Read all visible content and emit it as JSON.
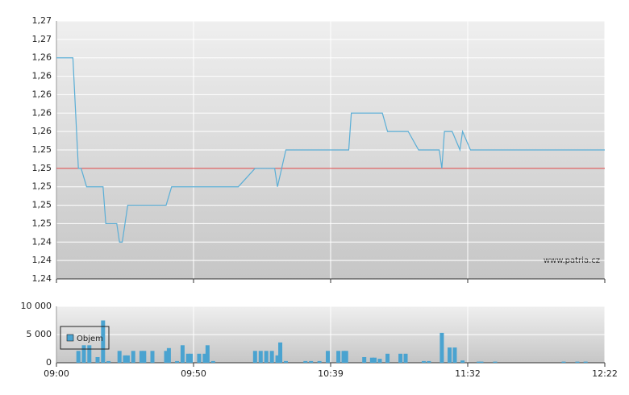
{
  "chart_data": [
    {
      "type": "line",
      "color": "#5aaed6",
      "x": [
        0,
        6,
        8,
        9,
        11,
        17,
        18,
        22,
        23,
        24,
        25,
        26,
        40,
        42,
        66,
        72,
        79,
        80,
        83,
        106,
        107,
        119,
        121,
        129,
        133,
        141,
        142,
        143,
        146,
        149,
        150,
        153,
        202
      ],
      "values": [
        1.2635,
        1.2635,
        1.2515,
        1.2515,
        1.2495,
        1.2495,
        1.2455,
        1.2455,
        1.2435,
        1.2435,
        1.2455,
        1.2475,
        1.2475,
        1.2495,
        1.2495,
        1.2515,
        1.2515,
        1.2495,
        1.2535,
        1.2535,
        1.2575,
        1.2575,
        1.2555,
        1.2555,
        1.2535,
        1.2535,
        1.2515,
        1.2555,
        1.2555,
        1.2535,
        1.2555,
        1.2535,
        1.2535
      ],
      "ylim": [
        1.2395,
        1.2675
      ],
      "yticks": [
        {
          "value": 1.2675,
          "label": "1,27"
        },
        {
          "value": 1.2655,
          "label": "1,27"
        },
        {
          "value": 1.2635,
          "label": "1,26"
        },
        {
          "value": 1.2615,
          "label": "1,26"
        },
        {
          "value": 1.2595,
          "label": "1,26"
        },
        {
          "value": 1.2575,
          "label": "1,26"
        },
        {
          "value": 1.2555,
          "label": "1,26"
        },
        {
          "value": 1.2535,
          "label": "1,25"
        },
        {
          "value": 1.2515,
          "label": "1,25"
        },
        {
          "value": 1.2495,
          "label": "1,25"
        },
        {
          "value": 1.2475,
          "label": "1,25"
        },
        {
          "value": 1.2455,
          "label": "1,25"
        },
        {
          "value": 1.2435,
          "label": "1,24"
        },
        {
          "value": 1.2415,
          "label": "1,24"
        },
        {
          "value": 1.2395,
          "label": "1,24"
        }
      ],
      "reference_line": {
        "value": 1.2515,
        "color": "#d84040"
      },
      "grid": true,
      "watermark": "www.patria.cz"
    },
    {
      "type": "bar",
      "x": [
        8,
        10,
        12,
        15,
        17,
        19,
        23,
        25,
        26,
        28,
        31,
        32,
        35,
        40,
        41,
        44,
        46,
        48,
        49,
        52,
        54,
        55,
        57,
        72,
        74,
        76,
        78,
        80,
        81,
        83,
        90,
        92,
        95,
        98,
        102,
        104,
        105,
        112,
        115,
        116,
        118,
        121,
        126,
        128,
        135,
        137,
        142,
        145,
        147,
        150,
        156,
        157,
        162,
        187,
        192,
        195
      ],
      "series": [
        {
          "name": "Objem",
          "color": "#4aa3d0",
          "values": [
            2100,
            3100,
            3100,
            1000,
            7500,
            300,
            2100,
            1300,
            1300,
            2100,
            2100,
            2100,
            2100,
            2100,
            2600,
            300,
            3100,
            1600,
            1600,
            1600,
            1600,
            3100,
            300,
            2100,
            2100,
            2100,
            2100,
            1300,
            3600,
            300,
            300,
            300,
            300,
            2100,
            2100,
            2100,
            2100,
            1000,
            900,
            900,
            700,
            1600,
            1600,
            1600,
            300,
            300,
            5300,
            2700,
            2700,
            400,
            200,
            200,
            200,
            200,
            200,
            200
          ]
        }
      ],
      "ylim": [
        0,
        10000
      ],
      "yticks": [
        0,
        {
          "value": 5000,
          "label": "5 000"
        },
        {
          "value": 10000,
          "label": "10 000"
        }
      ],
      "xlim": [
        0,
        202
      ],
      "xticks": [
        {
          "value": 0,
          "label": "09:00"
        },
        {
          "value": 50,
          "label": "09:50"
        },
        {
          "value": 99,
          "label": "10:39"
        },
        {
          "value": 152,
          "label": "11:32"
        },
        {
          "value": 202,
          "label": "12:22"
        }
      ],
      "grid": true,
      "legend": "top-left"
    }
  ]
}
